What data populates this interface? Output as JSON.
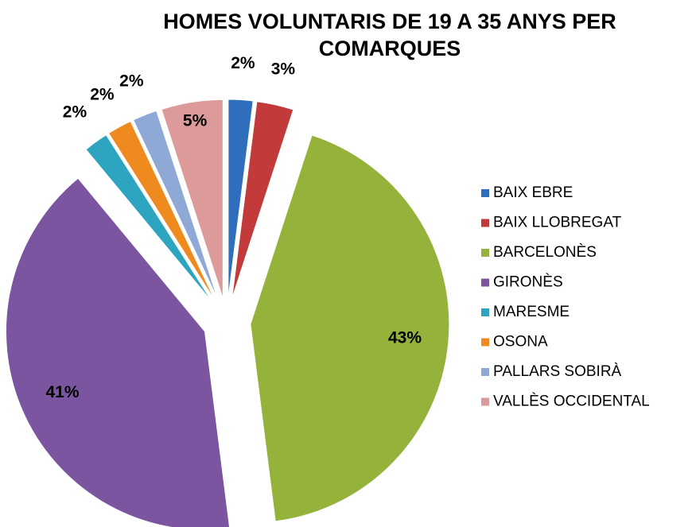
{
  "chart_data": {
    "type": "pie",
    "title": "HOMES VOLUNTARIS DE 19 A 35 ANYS PER COMARQUES",
    "categories": [
      "BAIX EBRE",
      "BAIX LLOBREGAT",
      "BARCELONÈS",
      "GIRONÈS",
      "MARESME",
      "OSONA",
      "PALLARS SOBIRÀ",
      "VALLÈS OCCIDENTAL"
    ],
    "values": [
      2,
      3,
      43,
      41,
      2,
      2,
      2,
      5
    ],
    "value_labels": [
      "2%",
      "3%",
      "43%",
      "41%",
      "2%",
      "2%",
      "2%",
      "5%"
    ],
    "colors": [
      "#2f6dbd",
      "#c23b3a",
      "#95b33a",
      "#7b55a0",
      "#2ea5c0",
      "#ef8a1f",
      "#8fa9d6",
      "#dc9a9a"
    ],
    "legend": "right"
  }
}
